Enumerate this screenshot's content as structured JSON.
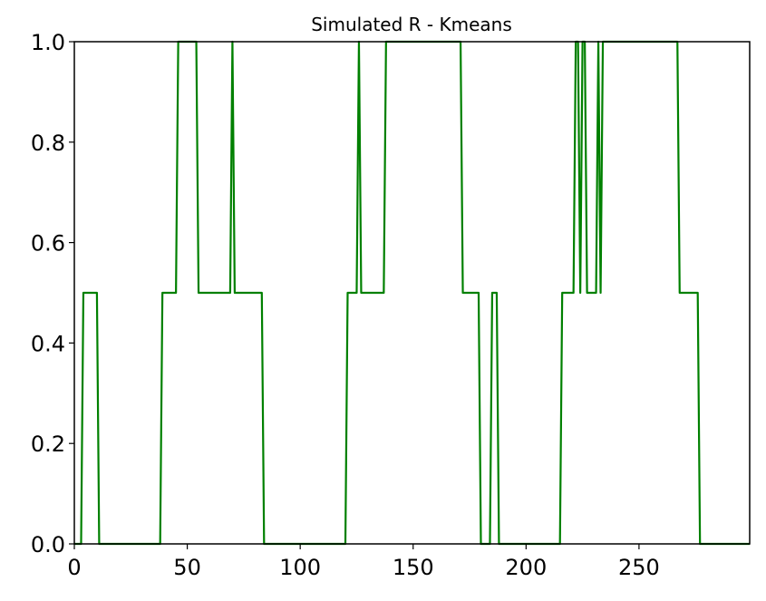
{
  "chart_data": {
    "type": "line",
    "title": "Simulated R - Kmeans",
    "xlabel": "",
    "ylabel": "",
    "xlim": [
      0,
      299
    ],
    "ylim": [
      0.0,
      1.0
    ],
    "grid": false,
    "line_color": "#008000",
    "xticks": [
      0,
      50,
      100,
      150,
      200,
      250
    ],
    "xtick_labels": [
      "0",
      "50",
      "100",
      "150",
      "200",
      "250"
    ],
    "yticks": [
      0.0,
      0.2,
      0.4,
      0.6,
      0.8,
      1.0
    ],
    "ytick_labels": [
      "0.0",
      "0.2",
      "0.4",
      "0.6",
      "0.8",
      "1.0"
    ],
    "series": [
      {
        "x": [
          0,
          3,
          4,
          10,
          11,
          38,
          39,
          45,
          46,
          54,
          55,
          69,
          70,
          71,
          83,
          84,
          120,
          121,
          125,
          126,
          127,
          137,
          138,
          171,
          172,
          179,
          180,
          184,
          185,
          187,
          188,
          215,
          216,
          221,
          222,
          223,
          224,
          225,
          226,
          227,
          231,
          232,
          233,
          234,
          267,
          268,
          276,
          277,
          299
        ],
        "y": [
          0.0,
          0.0,
          0.5,
          0.5,
          0.0,
          0.0,
          0.5,
          0.5,
          1.0,
          1.0,
          0.5,
          0.5,
          1.0,
          0.5,
          0.5,
          0.0,
          0.0,
          0.5,
          0.5,
          1.0,
          0.5,
          0.5,
          1.0,
          1.0,
          0.5,
          0.5,
          0.0,
          0.0,
          0.5,
          0.5,
          0.0,
          0.0,
          0.5,
          0.5,
          1.0,
          1.0,
          0.5,
          1.0,
          1.0,
          0.5,
          0.5,
          1.0,
          0.5,
          1.0,
          1.0,
          0.5,
          0.5,
          0.0,
          0.0
        ]
      }
    ]
  }
}
